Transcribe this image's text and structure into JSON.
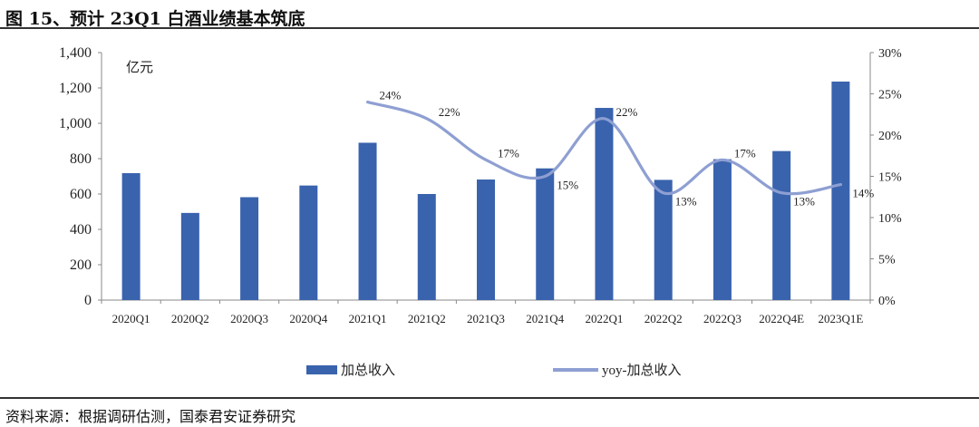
{
  "header": {
    "title": "图 15、预计 23Q1 白酒业绩基本筑底"
  },
  "footer": {
    "source": "资料来源：根据调研估测，国泰君安证券研究"
  },
  "colors": {
    "bar": "#3a63ae",
    "line": "#8e9fd2",
    "rule": "#333333"
  },
  "chart_data": {
    "type": "bar",
    "categories": [
      "2020Q1",
      "2020Q2",
      "2020Q3",
      "2020Q4",
      "2021Q1",
      "2021Q2",
      "2021Q3",
      "2021Q4",
      "2022Q1",
      "2022Q2",
      "2022Q3",
      "2022Q4E",
      "2023Q1E"
    ],
    "unit_label": "亿元",
    "series": [
      {
        "name": "加总收入",
        "type": "bar",
        "axis": "left",
        "values": [
          718,
          493,
          582,
          648,
          890,
          600,
          682,
          745,
          1087,
          680,
          797,
          843,
          1236
        ]
      },
      {
        "name": "yoy-加总收入",
        "type": "line",
        "axis": "right",
        "values": [
          null,
          null,
          null,
          null,
          24,
          22,
          17,
          15,
          22,
          13,
          17,
          13,
          14
        ],
        "labels": [
          "",
          "",
          "",
          "",
          "24%",
          "22%",
          "17%",
          "15%",
          "22%",
          "13%",
          "17%",
          "13%",
          "14%"
        ]
      }
    ],
    "y_left": {
      "lim": [
        0,
        1400
      ],
      "ticks": [
        0,
        200,
        400,
        600,
        800,
        1000,
        1200,
        1400
      ],
      "tick_labels": [
        "0",
        "200",
        "400",
        "600",
        "800",
        "1,000",
        "1,200",
        "1,400"
      ]
    },
    "y_right": {
      "lim": [
        0,
        30
      ],
      "ticks": [
        0,
        5,
        10,
        15,
        20,
        25,
        30
      ],
      "tick_labels": [
        "0%",
        "5%",
        "10%",
        "15%",
        "20%",
        "25%",
        "30%"
      ]
    },
    "legend": {
      "position": "bottom",
      "items": [
        "加总收入",
        "yoy-加总收入"
      ]
    },
    "grid": false
  }
}
